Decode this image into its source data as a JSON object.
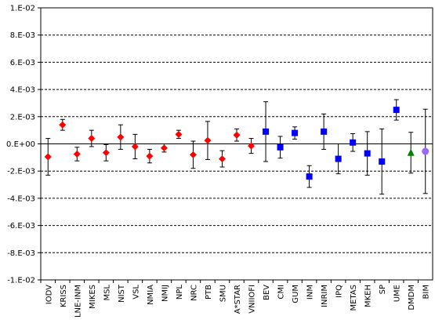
{
  "chart_data": {
    "type": "scatter",
    "title": "",
    "xlabel": "",
    "ylabel": "",
    "ylim": [
      -0.01,
      0.01
    ],
    "y_ticks": [
      0.01,
      0.008,
      0.006,
      0.004,
      0.002,
      0,
      -0.002,
      -0.004,
      -0.006,
      -0.008,
      -0.01
    ],
    "y_tick_labels": [
      "1.E-02",
      "8.E-03",
      "6.E-03",
      "4.E-03",
      "2.E-03",
      "0.E+00",
      "-2.E-03",
      "-4.E-03",
      "-6.E-03",
      "-8.E-03",
      "-1.E-02"
    ],
    "grid": "horizontal dashed",
    "categories": [
      "IODV",
      "KRISS",
      "LNE-INM",
      "MIKES",
      "MSL",
      "NIST",
      "VSL",
      "NMIA",
      "NMIJ",
      "NPL",
      "NRC",
      "PTB",
      "SMU",
      "A*STAR",
      "VNIIOFI",
      "BEV",
      "CMI",
      "GUM",
      "INM",
      "INRIM",
      "IPQ",
      "METAS",
      "MKEH",
      "SP",
      "UME",
      "DMDM",
      "BIM"
    ],
    "series": [
      {
        "marker": "diamond",
        "color": "#ff0000",
        "points": [
          {
            "category": "IODV",
            "y": -0.00095,
            "err": 0.00135
          },
          {
            "category": "KRISS",
            "y": 0.0014,
            "err": 0.0004
          },
          {
            "category": "LNE-INM",
            "y": -0.00075,
            "err": 0.0005
          },
          {
            "category": "MIKES",
            "y": 0.0004,
            "err": 0.0006
          },
          {
            "category": "MSL",
            "y": -0.00065,
            "err": 0.0006
          },
          {
            "category": "NIST",
            "y": 0.0005,
            "err": 0.0009
          },
          {
            "category": "VSL",
            "y": -0.0002,
            "err": 0.0009
          },
          {
            "category": "NMIA",
            "y": -0.0009,
            "err": 0.0005
          },
          {
            "category": "NMIJ",
            "y": -0.0003,
            "err": 0.0003
          },
          {
            "category": "NPL",
            "y": 0.0007,
            "err": 0.0003
          },
          {
            "category": "NRC",
            "y": -0.0008,
            "err": 0.001
          },
          {
            "category": "PTB",
            "y": 0.00025,
            "err": 0.0014
          },
          {
            "category": "SMU",
            "y": -0.0011,
            "err": 0.0006
          },
          {
            "category": "A*STAR",
            "y": 0.00065,
            "err": 0.00045
          },
          {
            "category": "VNIIOFI",
            "y": -0.00015,
            "err": 0.00055
          }
        ]
      },
      {
        "marker": "square",
        "color": "#0000ff",
        "points": [
          {
            "category": "BEV",
            "y": 0.0009,
            "err": 0.0022
          },
          {
            "category": "CMI",
            "y": -0.00025,
            "err": 0.0008
          },
          {
            "category": "GUM",
            "y": 0.0008,
            "err": 0.00045
          },
          {
            "category": "INM",
            "y": -0.0024,
            "err": 0.0008
          },
          {
            "category": "INRIM",
            "y": 0.0009,
            "err": 0.0013
          },
          {
            "category": "IPQ",
            "y": -0.0011,
            "err": 0.0011
          },
          {
            "category": "METAS",
            "y": 0.0001,
            "err": 0.00065
          },
          {
            "category": "MKEH",
            "y": -0.0007,
            "err": 0.0016
          },
          {
            "category": "SP",
            "y": -0.0013,
            "err": 0.0024
          },
          {
            "category": "UME",
            "y": 0.0025,
            "err": 0.00075
          }
        ]
      },
      {
        "marker": "triangle",
        "color": "#008000",
        "points": [
          {
            "category": "DMDM",
            "y": -0.00065,
            "err": 0.0015
          }
        ]
      },
      {
        "marker": "circle",
        "color": "#9966ff",
        "points": [
          {
            "category": "BIM",
            "y": -0.00055,
            "err": 0.0031
          }
        ]
      }
    ]
  }
}
